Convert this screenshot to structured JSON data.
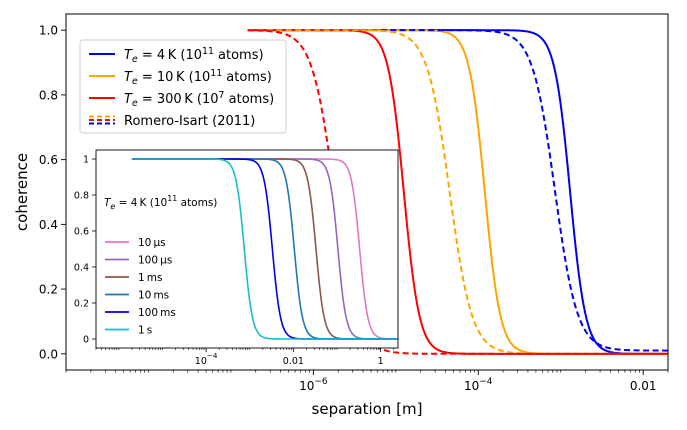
{
  "chart_data": [
    {
      "type": "line",
      "name": "main",
      "xlabel": "separation [m]",
      "ylabel": "coherence",
      "xscale": "log",
      "xlim": [
        1e-09,
        0.02
      ],
      "ylim": [
        -0.05,
        1.05
      ],
      "xticks": [
        {
          "value": 1e-06,
          "base": "10",
          "exp": "−6"
        },
        {
          "value": 0.0001,
          "base": "10",
          "exp": "−4"
        },
        {
          "value": 0.01,
          "base": "0.01",
          "exp": ""
        }
      ],
      "yticks": [
        "0.0",
        "0.2",
        "0.4",
        "0.6",
        "0.8",
        "1.0"
      ],
      "series": [
        {
          "key": "te4",
          "label_parts": [
            "T",
            "e",
            " = 4 K (10",
            "11",
            " atoms)"
          ],
          "color": "#0000ee",
          "style": "solid",
          "x_start": 1.6e-07,
          "x_half": 0.0013,
          "steepness": 4.6,
          "tail": 0.0
        },
        {
          "key": "te10",
          "label_parts": [
            "T",
            "e",
            " = 10 K (10",
            "11",
            " atoms)"
          ],
          "color": "#ffa500",
          "style": "solid",
          "x_start": 1.6e-07,
          "x_half": 0.00012,
          "steepness": 4.6,
          "tail": 0.0
        },
        {
          "key": "te300",
          "label_parts": [
            "T",
            "e",
            " = 300 K (10",
            "7",
            " atoms)"
          ],
          "color": "#ff0000",
          "style": "solid",
          "x_start": 1.6e-07,
          "x_half": 1.25e-05,
          "steepness": 4.6,
          "tail": 0.0
        },
        {
          "key": "ri_blue",
          "label": "",
          "color": "#0000ee",
          "style": "dashed",
          "x_start": 1.6e-07,
          "x_half": 0.00085,
          "steepness": 3.2,
          "tail": 0.01
        },
        {
          "key": "ri_orange",
          "label": "",
          "color": "#ffa500",
          "style": "dashed",
          "x_start": 1.6e-07,
          "x_half": 4.5e-05,
          "steepness": 3.2,
          "tail": 0.0
        },
        {
          "key": "ri_red",
          "label": "",
          "color": "#ff0000",
          "style": "dashed",
          "x_start": 1.6e-07,
          "x_half": 1.8e-06,
          "steepness": 3.2,
          "tail": 0.0
        }
      ],
      "legend": {
        "position": "upper-left",
        "entries": [
          {
            "series": "te4"
          },
          {
            "series": "te10"
          },
          {
            "series": "te300"
          },
          {
            "label": "Romero-Isart (2011)",
            "colors": [
              "#ffa500",
              "#ff0000",
              "#0000ee"
            ],
            "style": "dashed"
          }
        ]
      }
    },
    {
      "type": "line",
      "name": "inset",
      "title_parts": [
        "T",
        "e",
        " = 4 K (10",
        "11",
        " atoms)"
      ],
      "xscale": "log",
      "xlim": [
        3e-07,
        2.5
      ],
      "ylim": [
        -0.05,
        1.05
      ],
      "xticks": [
        {
          "value": 0.0001,
          "base": "10",
          "exp": "−4"
        },
        {
          "value": 0.01,
          "base": "0.01",
          "exp": ""
        },
        {
          "value": 1,
          "base": "1",
          "exp": ""
        }
      ],
      "yticks": [
        "0",
        "0.2",
        "0.4",
        "0.6",
        "0.8",
        "1"
      ],
      "series": [
        {
          "key": "s1",
          "label": "10 µs",
          "color": "#e377c2",
          "x_start": 2e-06,
          "x_half": 0.33,
          "steepness": 4.6
        },
        {
          "key": "s2",
          "label": "100 µs",
          "color": "#9467bd",
          "x_start": 2e-06,
          "x_half": 0.105,
          "steepness": 4.6
        },
        {
          "key": "s3",
          "label": "1 ms",
          "color": "#8c564b",
          "x_start": 2e-06,
          "x_half": 0.033,
          "steepness": 4.6
        },
        {
          "key": "s4",
          "label": "10 ms",
          "color": "#1f77b4",
          "x_start": 2e-06,
          "x_half": 0.0105,
          "steepness": 4.6
        },
        {
          "key": "s5",
          "label": "100 ms",
          "color": "#0000ee",
          "x_start": 2e-06,
          "x_half": 0.0033,
          "steepness": 4.6
        },
        {
          "key": "s6",
          "label": "1 s",
          "color": "#17becf",
          "x_start": 2e-06,
          "x_half": 0.00075,
          "steepness": 4.6
        }
      ]
    }
  ]
}
